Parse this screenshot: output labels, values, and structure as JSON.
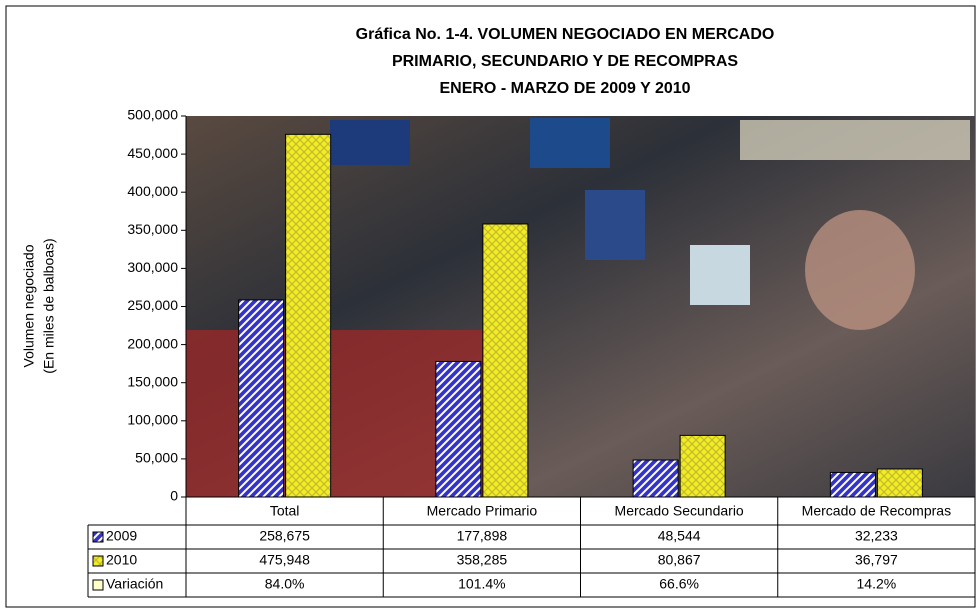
{
  "chart_data": {
    "type": "bar",
    "title": [
      "Gráfica No. 1-4.  VOLUMEN NEGOCIADO EN  MERCADO",
      "PRIMARIO, SECUNDARIO Y DE RECOMPRAS",
      "ENERO - MARZO DE 2009 Y 2010"
    ],
    "ylabel": [
      "Volumen negociado",
      "(En miles de balboas)"
    ],
    "categories": [
      "Total",
      "Mercado Primario",
      "Mercado Secundario",
      "Mercado de Recompras"
    ],
    "series": [
      {
        "name": "2009",
        "color": "#3333cc",
        "values": [
          258675,
          177898,
          48544,
          32233
        ],
        "value_labels": [
          "258,675",
          "177,898",
          "48,544",
          "32,233"
        ]
      },
      {
        "name": "2010",
        "color": "#eeee22",
        "values": [
          475948,
          358285,
          80867,
          36797
        ],
        "value_labels": [
          "475,948",
          "358,285",
          "80,867",
          "36,797"
        ]
      },
      {
        "name": "Variación",
        "color": "#ffffcc",
        "bars": false,
        "values": [
          84.0,
          101.4,
          66.6,
          14.2
        ],
        "value_labels": [
          "84.0%",
          "101.4%",
          "66.6%",
          "14.2%"
        ]
      }
    ],
    "ylim": [
      0,
      500000
    ],
    "yticks": [
      0,
      {
        "value": 50000,
        "label": "50,000"
      },
      {
        "value": 100000,
        "label": "100,000"
      },
      {
        "value": 150000,
        "label": "150,000"
      },
      {
        "value": 200000,
        "label": "200,000"
      },
      {
        "value": 250000,
        "label": "250,000"
      },
      {
        "value": 300000,
        "label": "300,000"
      },
      {
        "value": 350000,
        "label": "350,000"
      },
      {
        "value": 400000,
        "label": "400,000"
      },
      {
        "value": 450000,
        "label": "450,000"
      },
      {
        "value": 500000,
        "label": "500,000"
      }
    ],
    "data_table": true
  }
}
